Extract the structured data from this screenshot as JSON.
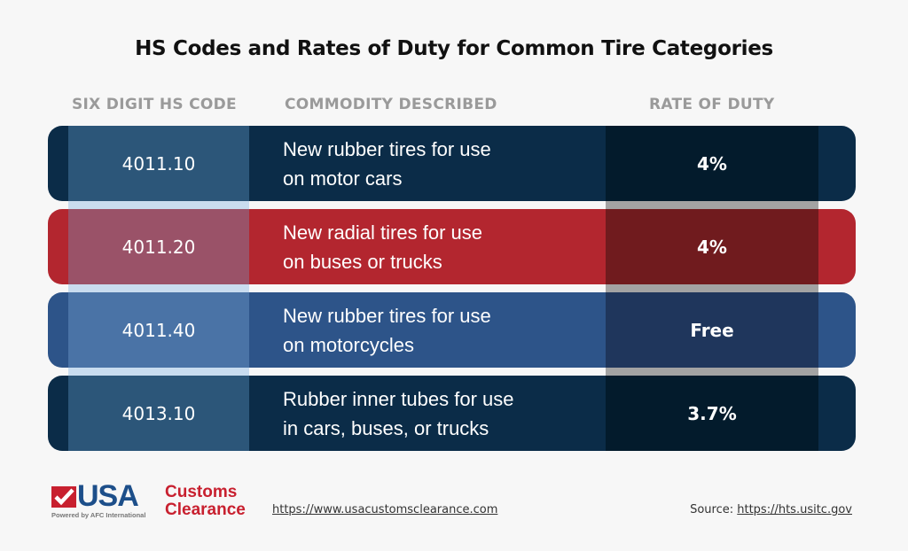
{
  "title": "HS Codes and Rates of Duty for Common Tire Categories",
  "headers": {
    "code": "SIX DIGIT HS CODE",
    "commodity": "COMMODITY DESCRIBED",
    "rate": "RATE OF DUTY"
  },
  "rows": [
    {
      "code": "4011.10",
      "commodity": "New rubber tires for use\non motor cars",
      "rate": "4%",
      "colors": {
        "row": "#0b2c48",
        "code": "#2c5679",
        "rate": "#031b2c"
      }
    },
    {
      "code": "4011.20",
      "commodity": "New radial tires for use\non buses or trucks",
      "rate": "4%",
      "colors": {
        "row": "#b3262f",
        "code": "#9a5268",
        "rate": "#701b1e"
      }
    },
    {
      "code": "4011.40",
      "commodity": "New rubber tires for use\non motorcycles",
      "rate": "Free",
      "colors": {
        "row": "#2d5489",
        "code": "#4a73a6",
        "rate": "#1f365c"
      }
    },
    {
      "code": "4013.10",
      "commodity": "Rubber inner tubes for use\nin cars, buses, or trucks",
      "rate": "3.7%",
      "colors": {
        "row": "#0b2c48",
        "code": "#2c5679",
        "rate": "#031b2c"
      }
    }
  ],
  "footer": {
    "logo": {
      "mark": "USA",
      "line1": "Customs",
      "line2": "Clearance",
      "tagline": "Powered by AFC International"
    },
    "url": "https://www.usacustomsclearance.com",
    "source_label": "Source:",
    "source_url": "https://hts.usitc.gov"
  }
}
